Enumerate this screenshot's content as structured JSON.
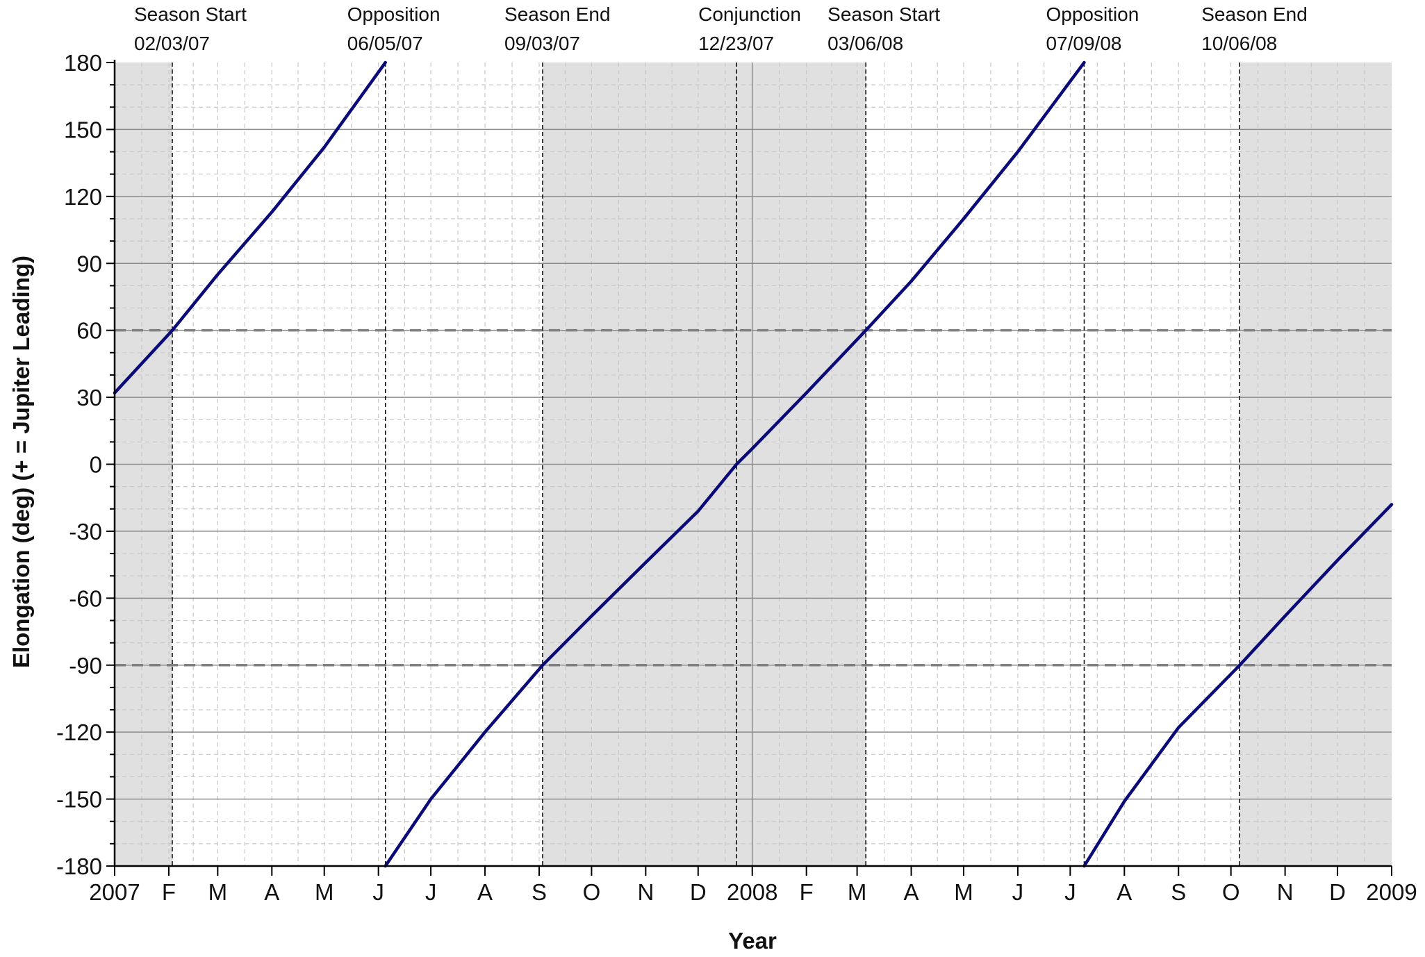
{
  "chart_data": {
    "type": "line",
    "xlabel": "Year",
    "ylabel": "Elongation (deg) (+ = Jupiter Leading)",
    "xlim": [
      "2007-01-01",
      "2009-01-01"
    ],
    "ylim": [
      -180,
      180
    ],
    "y_ticks": [
      180,
      150,
      120,
      90,
      60,
      30,
      0,
      -30,
      -60,
      -90,
      -120,
      -150,
      -180
    ],
    "x_ticks": [
      {
        "date": "2007-01-01",
        "label": "2007"
      },
      {
        "date": "2007-02-01",
        "label": "F"
      },
      {
        "date": "2007-03-01",
        "label": "M"
      },
      {
        "date": "2007-04-01",
        "label": "A"
      },
      {
        "date": "2007-05-01",
        "label": "M"
      },
      {
        "date": "2007-06-01",
        "label": "J"
      },
      {
        "date": "2007-07-01",
        "label": "J"
      },
      {
        "date": "2007-08-01",
        "label": "A"
      },
      {
        "date": "2007-09-01",
        "label": "S"
      },
      {
        "date": "2007-10-01",
        "label": "O"
      },
      {
        "date": "2007-11-01",
        "label": "N"
      },
      {
        "date": "2007-12-01",
        "label": "D"
      },
      {
        "date": "2008-01-01",
        "label": "2008"
      },
      {
        "date": "2008-02-01",
        "label": "F"
      },
      {
        "date": "2008-03-01",
        "label": "M"
      },
      {
        "date": "2008-04-01",
        "label": "A"
      },
      {
        "date": "2008-05-01",
        "label": "M"
      },
      {
        "date": "2008-06-01",
        "label": "J"
      },
      {
        "date": "2008-07-01",
        "label": "J"
      },
      {
        "date": "2008-08-01",
        "label": "A"
      },
      {
        "date": "2008-09-01",
        "label": "S"
      },
      {
        "date": "2008-10-01",
        "label": "O"
      },
      {
        "date": "2008-11-01",
        "label": "N"
      },
      {
        "date": "2008-12-01",
        "label": "D"
      },
      {
        "date": "2009-01-01",
        "label": "2009"
      }
    ],
    "reference_lines_y": [
      60,
      -90
    ],
    "events": [
      {
        "label": "Season Start",
        "date_text": "02/03/07",
        "date": "2007-02-03"
      },
      {
        "label": "Opposition",
        "date_text": "06/05/07",
        "date": "2007-06-05"
      },
      {
        "label": "Season End",
        "date_text": "09/03/07",
        "date": "2007-09-03"
      },
      {
        "label": "Conjunction",
        "date_text": "12/23/07",
        "date": "2007-12-23"
      },
      {
        "label": "Season Start",
        "date_text": "03/06/08",
        "date": "2008-03-06"
      },
      {
        "label": "Opposition",
        "date_text": "07/09/08",
        "date": "2008-07-09"
      },
      {
        "label": "Season End",
        "date_text": "10/06/08",
        "date": "2008-10-06"
      }
    ],
    "shaded_periods": [
      {
        "start": "2007-01-01",
        "end": "2007-02-03"
      },
      {
        "start": "2007-09-03",
        "end": "2008-03-06"
      },
      {
        "start": "2008-10-06",
        "end": "2009-01-01"
      }
    ],
    "series": [
      {
        "color": "#0a0a78",
        "segments": [
          {
            "x": [
              "2007-01-01",
              "2007-02-03",
              "2007-03-01",
              "2007-04-01",
              "2007-05-01",
              "2007-06-05"
            ],
            "y": [
              32,
              60,
              85,
              113,
              142,
              180
            ]
          },
          {
            "x": [
              "2007-06-05",
              "2007-07-01",
              "2007-08-01",
              "2007-09-03",
              "2007-10-01",
              "2007-11-01",
              "2007-12-01",
              "2007-12-23",
              "2008-01-01",
              "2008-02-01",
              "2008-03-06",
              "2008-04-01",
              "2008-05-01",
              "2008-06-01",
              "2008-07-09"
            ],
            "y": [
              -180,
              -150,
              -120,
              -90,
              -68,
              -44,
              -21,
              0,
              7,
              32,
              60,
              82,
              110,
              140,
              180
            ]
          },
          {
            "x": [
              "2008-07-09",
              "2008-08-01",
              "2008-09-01",
              "2008-10-06",
              "2008-11-01",
              "2008-12-01",
              "2009-01-01"
            ],
            "y": [
              -180,
              -151,
              -118,
              -90,
              -68,
              -43,
              -18
            ]
          }
        ]
      }
    ],
    "grid": true,
    "colors": {
      "line": "#0a0a78",
      "shade": "#e0e0e0",
      "major_grid": "#8c8c8c",
      "minor_grid": "#c8c8c8",
      "reference": "#808080",
      "axis": "#000000"
    }
  }
}
